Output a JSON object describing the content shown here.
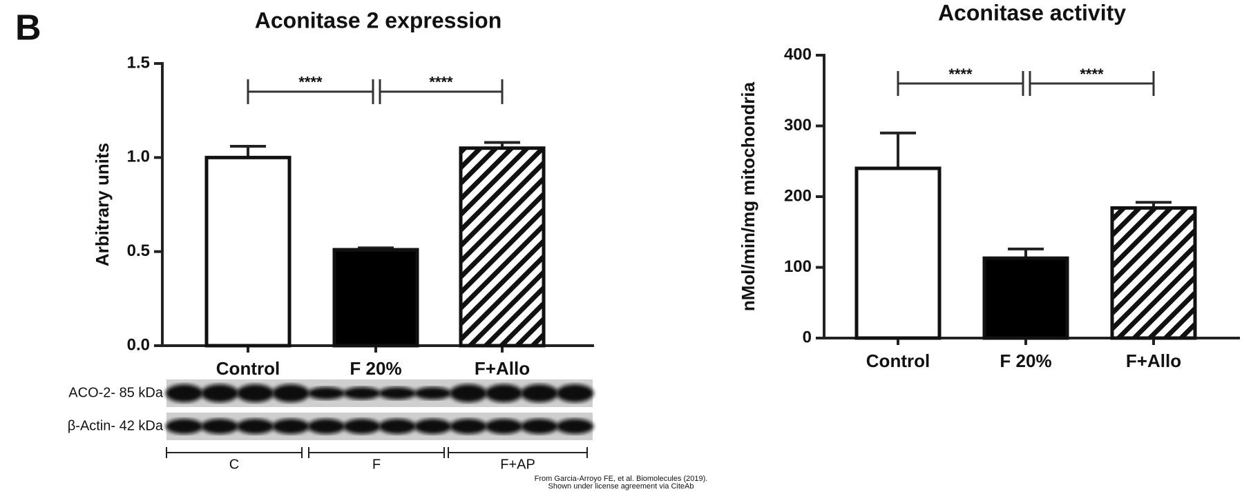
{
  "panel_label": "B",
  "chart_data": [
    {
      "type": "bar",
      "title": "Aconitase 2 expression",
      "y_label": "Arbitrary units",
      "categories": [
        "Control",
        "F 20%",
        "F+Allo"
      ],
      "values": [
        1.0,
        0.51,
        1.05
      ],
      "errors": [
        0.06,
        0.01,
        0.03
      ],
      "colors": [
        "#ffffff",
        "#000000",
        "#ffffff"
      ],
      "hatch": [
        false,
        false,
        true
      ],
      "ylim": [
        0,
        1.5
      ],
      "yticks": [
        {
          "value": 0,
          "label": "0.0"
        },
        0.5,
        {
          "value": 1,
          "label": "1.0"
        },
        1.5
      ],
      "annotations": [
        {
          "text": "****",
          "from": 0,
          "to": 1,
          "y": 1.35
        },
        {
          "text": "****",
          "from": 1,
          "to": 2,
          "y": 1.35
        }
      ]
    },
    {
      "type": "bar",
      "title": "Aconitase activity",
      "y_label": "nMol/min/mg mitochondria",
      "categories": [
        "Control",
        "F 20%",
        "F+Allo"
      ],
      "values": [
        240,
        113,
        184
      ],
      "errors": [
        50,
        13,
        8
      ],
      "colors": [
        "#ffffff",
        "#000000",
        "#ffffff"
      ],
      "hatch": [
        false,
        false,
        true
      ],
      "ylim": [
        0,
        400
      ],
      "yticks": [
        0,
        100,
        200,
        300,
        400
      ],
      "annotations": [
        {
          "text": "****",
          "from": 0,
          "to": 1,
          "y": 360
        },
        {
          "text": "****",
          "from": 1,
          "to": 2,
          "y": 360
        }
      ]
    }
  ],
  "blot": {
    "rows": [
      "ACO-2- 85 kDa",
      "β-Actin- 42 kDa"
    ],
    "groups": [
      "C",
      "F",
      "F+AP"
    ]
  },
  "credit": [
    "From Garcia-Arroyo FE, et al. Biomolecules (2019).",
    "Shown under license agreement via CiteAb"
  ]
}
